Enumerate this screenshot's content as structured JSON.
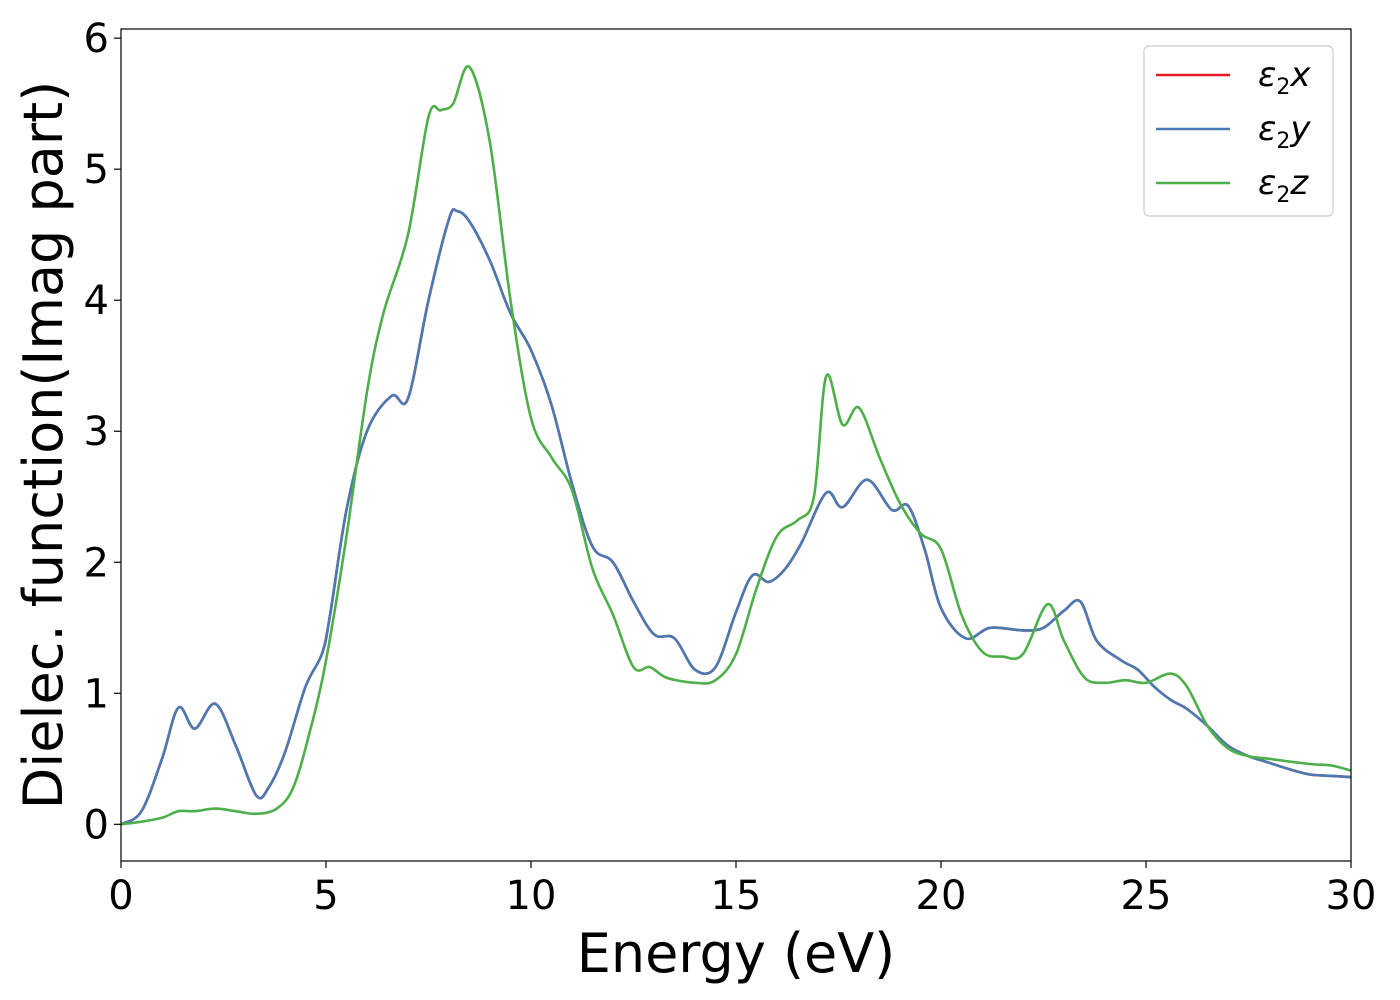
{
  "chart_data": {
    "type": "line",
    "xlabel": "Energy (eV)",
    "ylabel": "Dielec. function(Imag part)",
    "xlim": [
      0,
      30
    ],
    "ylim": [
      -0.28,
      6.07
    ],
    "xticks": [
      0,
      5,
      10,
      15,
      20,
      25,
      30
    ],
    "yticks": [
      0,
      1,
      2,
      3,
      4,
      5,
      6
    ],
    "grid": false,
    "legend_position": "top-right",
    "series": [
      {
        "name": "ε2x",
        "legend_base": "ε",
        "legend_sub": "2",
        "legend_var": "x",
        "color": "#e41a1c",
        "x": [
          0,
          0.5,
          1.0,
          1.4,
          1.8,
          2.3,
          2.8,
          3.3,
          3.6,
          4.0,
          4.5,
          4.9,
          5.1,
          5.5,
          6.0,
          6.6,
          7.0,
          7.5,
          8.0,
          8.2,
          8.5,
          9.0,
          9.5,
          10.0,
          10.5,
          11.0,
          11.5,
          12.0,
          12.5,
          13.0,
          13.5,
          14.0,
          14.5,
          15.0,
          15.4,
          15.8,
          16.2,
          16.6,
          17.2,
          17.6,
          18.2,
          18.8,
          19.2,
          19.6,
          20.0,
          20.6,
          21.2,
          22.0,
          22.5,
          23.0,
          23.4,
          23.8,
          24.4,
          24.8,
          25.2,
          25.6,
          26.0,
          26.5,
          27.0,
          27.5,
          28.0,
          28.5,
          29.0,
          29.5,
          30.0
        ],
        "values": [
          0.0,
          0.1,
          0.5,
          0.89,
          0.73,
          0.92,
          0.6,
          0.22,
          0.28,
          0.55,
          1.05,
          1.3,
          1.6,
          2.4,
          3.0,
          3.27,
          3.25,
          4.0,
          4.62,
          4.68,
          4.6,
          4.3,
          3.9,
          3.62,
          3.2,
          2.6,
          2.12,
          2.0,
          1.7,
          1.45,
          1.42,
          1.18,
          1.2,
          1.62,
          1.9,
          1.85,
          1.95,
          2.15,
          2.53,
          2.42,
          2.63,
          2.4,
          2.43,
          2.1,
          1.65,
          1.42,
          1.5,
          1.48,
          1.5,
          1.63,
          1.7,
          1.4,
          1.25,
          1.18,
          1.05,
          0.95,
          0.88,
          0.75,
          0.6,
          0.52,
          0.47,
          0.42,
          0.38,
          0.37,
          0.36
        ]
      },
      {
        "name": "ε2y",
        "legend_base": "ε",
        "legend_sub": "2",
        "legend_var": "y",
        "color": "#4a7ab3",
        "x": [
          0,
          0.5,
          1.0,
          1.4,
          1.8,
          2.3,
          2.8,
          3.3,
          3.6,
          4.0,
          4.5,
          4.9,
          5.1,
          5.5,
          6.0,
          6.6,
          7.0,
          7.5,
          8.0,
          8.2,
          8.5,
          9.0,
          9.5,
          10.0,
          10.5,
          11.0,
          11.5,
          12.0,
          12.5,
          13.0,
          13.5,
          14.0,
          14.5,
          15.0,
          15.4,
          15.8,
          16.2,
          16.6,
          17.2,
          17.6,
          18.2,
          18.8,
          19.2,
          19.6,
          20.0,
          20.6,
          21.2,
          22.0,
          22.5,
          23.0,
          23.4,
          23.8,
          24.4,
          24.8,
          25.2,
          25.6,
          26.0,
          26.5,
          27.0,
          27.5,
          28.0,
          28.5,
          29.0,
          29.5,
          30.0
        ],
        "values": [
          0.0,
          0.1,
          0.5,
          0.89,
          0.73,
          0.92,
          0.6,
          0.22,
          0.28,
          0.55,
          1.05,
          1.3,
          1.6,
          2.4,
          3.0,
          3.27,
          3.25,
          4.0,
          4.62,
          4.68,
          4.6,
          4.3,
          3.9,
          3.62,
          3.2,
          2.6,
          2.12,
          2.0,
          1.7,
          1.45,
          1.42,
          1.18,
          1.2,
          1.62,
          1.9,
          1.85,
          1.95,
          2.15,
          2.53,
          2.42,
          2.63,
          2.4,
          2.43,
          2.1,
          1.65,
          1.42,
          1.5,
          1.48,
          1.5,
          1.63,
          1.7,
          1.4,
          1.25,
          1.18,
          1.05,
          0.95,
          0.88,
          0.75,
          0.6,
          0.52,
          0.47,
          0.42,
          0.38,
          0.37,
          0.36
        ]
      },
      {
        "name": "ε2z",
        "legend_base": "ε",
        "legend_sub": "2",
        "legend_var": "z",
        "color": "#4daf4a",
        "x": [
          0,
          0.5,
          1.0,
          1.4,
          1.8,
          2.3,
          2.8,
          3.3,
          3.8,
          4.2,
          4.6,
          5.0,
          5.5,
          6.0,
          6.4,
          7.0,
          7.5,
          7.8,
          8.1,
          8.5,
          9.0,
          9.5,
          10.0,
          10.5,
          11.0,
          11.5,
          12.0,
          12.5,
          12.9,
          13.3,
          14.0,
          14.5,
          15.0,
          15.5,
          16.0,
          16.5,
          16.9,
          17.2,
          17.6,
          18.0,
          18.5,
          19.0,
          19.5,
          20.0,
          20.5,
          21.0,
          21.5,
          22.0,
          22.6,
          23.0,
          23.5,
          24.0,
          24.5,
          25.0,
          25.6,
          26.0,
          26.5,
          27.0,
          27.5,
          28.0,
          29.0,
          29.5,
          30.0
        ],
        "values": [
          0.0,
          0.02,
          0.05,
          0.1,
          0.1,
          0.12,
          0.1,
          0.08,
          0.12,
          0.28,
          0.7,
          1.25,
          2.2,
          3.3,
          3.9,
          4.5,
          5.4,
          5.45,
          5.5,
          5.78,
          5.2,
          4.0,
          3.1,
          2.8,
          2.55,
          1.95,
          1.6,
          1.2,
          1.2,
          1.12,
          1.08,
          1.1,
          1.3,
          1.8,
          2.2,
          2.32,
          2.5,
          3.42,
          3.05,
          3.18,
          2.8,
          2.45,
          2.22,
          2.1,
          1.6,
          1.32,
          1.28,
          1.3,
          1.68,
          1.4,
          1.12,
          1.08,
          1.1,
          1.08,
          1.15,
          1.05,
          0.75,
          0.58,
          0.52,
          0.5,
          0.46,
          0.45,
          0.41
        ]
      }
    ]
  }
}
